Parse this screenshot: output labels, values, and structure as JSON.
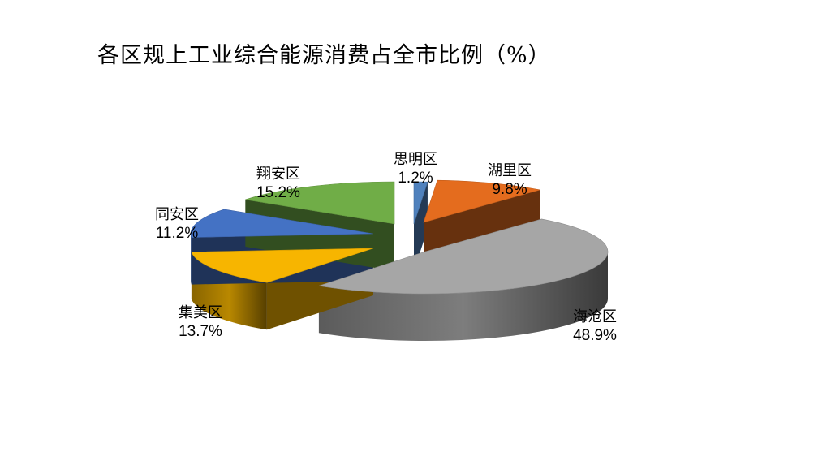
{
  "chart_data": {
    "type": "pie",
    "title": "各区规上工业综合能源消费占全市比例（%）",
    "slices": [
      {
        "name": "思明区",
        "value": 1.2,
        "label": "1.2%",
        "color": "#4f81bd"
      },
      {
        "name": "湖里区",
        "value": 9.8,
        "label": "9.8%",
        "color": "#e46c1e"
      },
      {
        "name": "海沧区",
        "value": 48.9,
        "label": "48.9%",
        "color": "#a6a6a6"
      },
      {
        "name": "集美区",
        "value": 13.7,
        "label": "13.7%",
        "color": "#f7b500"
      },
      {
        "name": "同安区",
        "value": 11.2,
        "label": "11.2%",
        "color": "#4472c4"
      },
      {
        "name": "翔安区",
        "value": 15.2,
        "label": "15.2%",
        "color": "#70ad47"
      }
    ],
    "legend": "none",
    "style": "3d-exploded"
  }
}
